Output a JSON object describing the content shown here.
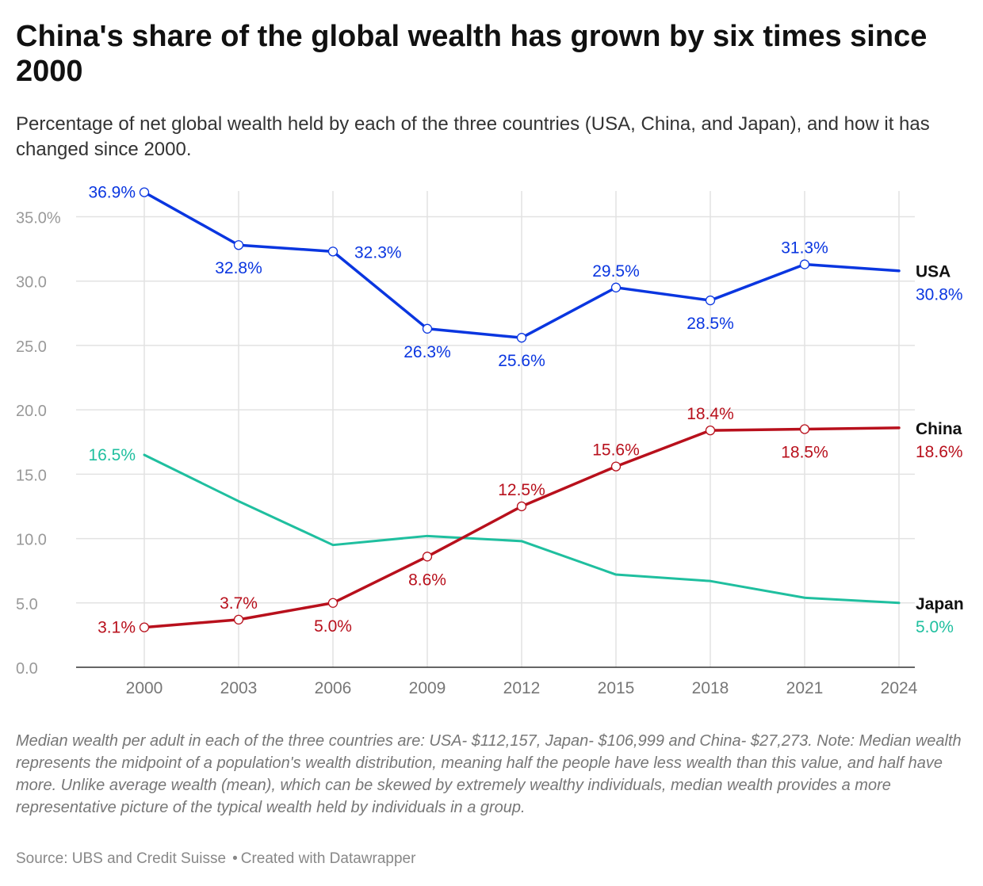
{
  "title": "China's share of the global wealth has grown by six times since 2000",
  "subtitle": "Percentage of net global wealth held by each of the three countries (USA, China, and Japan), and how it has changed since 2000.",
  "notes": "Median wealth per adult in each of the three countries are: USA- $112,157, Japan- $106,999 and China- $27,273. Note: Median wealth represents the midpoint of a population's wealth distribution, meaning half the people have less wealth than this value, and half have more. Unlike average wealth (mean), which can be skewed by extremely wealthy individuals, median wealth provides a more representative picture of the typical wealth held by individuals in a group.",
  "source": "Source: UBS and Credit Suisse",
  "created_with": "Created with Datawrapper",
  "chart_data": {
    "type": "line",
    "x": [
      2000,
      2003,
      2006,
      2009,
      2012,
      2015,
      2018,
      2021,
      2024
    ],
    "ylim": [
      0,
      37
    ],
    "yticks": [
      0,
      5,
      10,
      15,
      20,
      25,
      30,
      35
    ],
    "ytick_labels": [
      "0.0",
      "5.0",
      "10.0",
      "15.0",
      "20.0",
      "25.0",
      "30.0",
      "35.0%"
    ],
    "xtick_labels": [
      "2000",
      "2003",
      "2006",
      "2009",
      "2012",
      "2015",
      "2018",
      "2021",
      "2024"
    ],
    "grid": true,
    "series": [
      {
        "name": "USA",
        "color": "#0a36e0",
        "values": [
          36.9,
          32.8,
          32.3,
          26.3,
          25.6,
          29.5,
          28.5,
          31.3,
          30.8
        ],
        "markers": true,
        "data_labels": [
          "36.9%",
          "32.8%",
          "32.3%",
          "26.3%",
          "25.6%",
          "29.5%",
          "28.5%",
          "31.3%",
          "30.8%"
        ]
      },
      {
        "name": "China",
        "color": "#b8101c",
        "values": [
          3.1,
          3.7,
          5.0,
          8.6,
          12.5,
          15.6,
          18.4,
          18.5,
          18.6
        ],
        "markers": true,
        "data_labels": [
          "3.1%",
          "3.7%",
          "5.0%",
          "8.6%",
          "12.5%",
          "15.6%",
          "18.4%",
          "18.5%",
          "18.6%"
        ]
      },
      {
        "name": "Japan",
        "color": "#1fbf9f",
        "values": [
          16.5,
          12.9,
          9.5,
          10.2,
          9.8,
          7.2,
          6.7,
          5.4,
          5.0
        ],
        "markers": false,
        "data_labels": [
          "16.5%",
          null,
          null,
          null,
          null,
          null,
          null,
          null,
          "5.0%"
        ]
      }
    ]
  }
}
